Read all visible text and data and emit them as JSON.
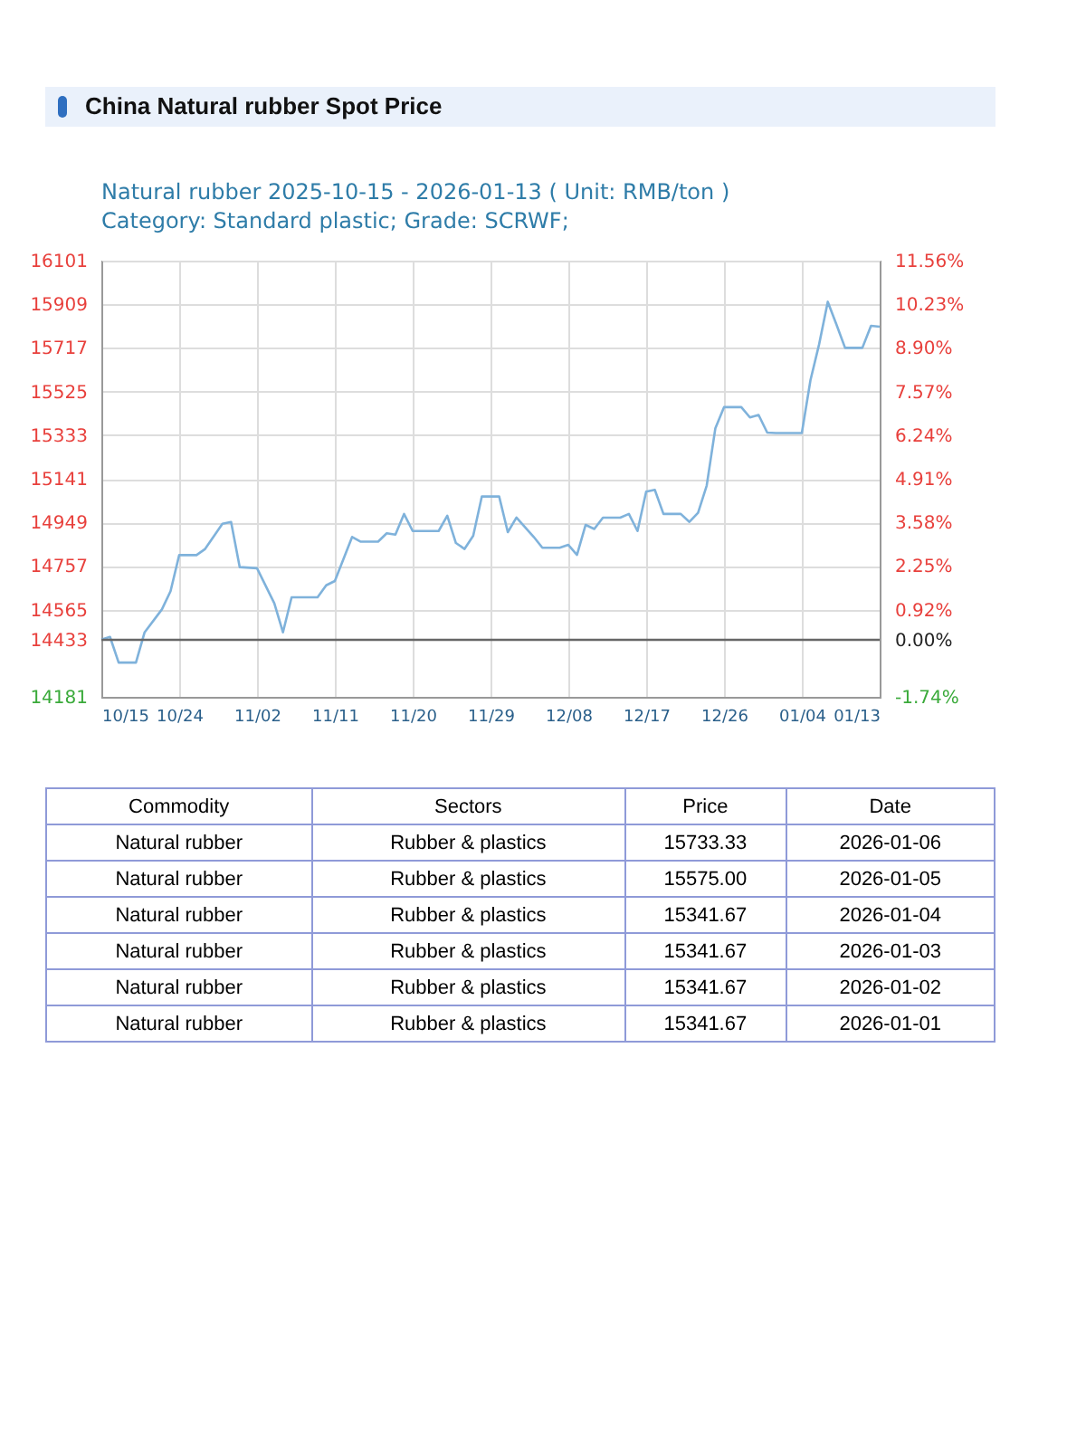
{
  "chart_data": {
    "type": "line",
    "title": "Natural rubber 2025-10-15 - 2026-01-13    ( Unit: RMB/ton )",
    "subtitle": "Category: Standard plastic; Grade: SCRWF;",
    "x": [
      "2025-10-15",
      "2025-10-16",
      "2025-10-17",
      "2025-10-19",
      "2025-10-20",
      "2025-10-22",
      "2025-10-23",
      "2025-10-24",
      "2025-10-26",
      "2025-10-27",
      "2025-10-29",
      "2025-10-30",
      "2025-10-31",
      "2025-11-02",
      "2025-11-04",
      "2025-11-05",
      "2025-11-06",
      "2025-11-09",
      "2025-11-10",
      "2025-11-11",
      "2025-11-13",
      "2025-11-14",
      "2025-11-16",
      "2025-11-17",
      "2025-11-18",
      "2025-11-19",
      "2025-11-20",
      "2025-11-23",
      "2025-11-24",
      "2025-11-25",
      "2025-11-26",
      "2025-11-27",
      "2025-11-28",
      "2025-11-30",
      "2025-12-01",
      "2025-12-02",
      "2025-12-04",
      "2025-12-05",
      "2025-12-07",
      "2025-12-08",
      "2025-12-09",
      "2025-12-10",
      "2025-12-11",
      "2025-12-12",
      "2025-12-14",
      "2025-12-15",
      "2025-12-16",
      "2025-12-17",
      "2025-12-18",
      "2025-12-19",
      "2025-12-21",
      "2025-12-22",
      "2025-12-23",
      "2025-12-24",
      "2025-12-25",
      "2025-12-26",
      "2025-12-28",
      "2025-12-29",
      "2025-12-30",
      "2025-12-31",
      "2026-01-01",
      "2026-01-02",
      "2026-01-03",
      "2026-01-04",
      "2026-01-05",
      "2026-01-06",
      "2026-01-07",
      "2026-01-08",
      "2026-01-09",
      "2026-01-11",
      "2026-01-12",
      "2026-01-13"
    ],
    "series": [
      {
        "color": "#7fb2db",
        "values": [
          14433,
          14445,
          14332,
          14332,
          14465,
          14566,
          14646,
          14805,
          14805,
          14832,
          14943,
          14951,
          14752,
          14747,
          14593,
          14465,
          14619,
          14619,
          14672,
          14691,
          14885,
          14864,
          14864,
          14901,
          14895,
          14986,
          14911,
          14911,
          14978,
          14858,
          14832,
          14890,
          15063,
          15063,
          14906,
          14970,
          14885,
          14837,
          14837,
          14850,
          14806,
          14938,
          14920,
          14970,
          14970,
          14986,
          14911,
          15084,
          15092,
          14986,
          14986,
          14951,
          14991,
          15111,
          15363,
          15456,
          15456,
          15411,
          15422,
          15344,
          15342,
          15342,
          15342,
          15342,
          15575,
          15733,
          15920,
          15820,
          15717,
          15717,
          15814,
          15810
        ]
      }
    ],
    "xlim": [
      "2025-10-15",
      "2026-01-13"
    ],
    "xticks": [
      {
        "value": "2025-10-15",
        "label": "10/15"
      },
      {
        "value": "2025-10-24",
        "label": "10/24"
      },
      {
        "value": "2025-11-02",
        "label": "11/02"
      },
      {
        "value": "2025-11-11",
        "label": "11/11"
      },
      {
        "value": "2025-11-20",
        "label": "11/20"
      },
      {
        "value": "2025-11-29",
        "label": "11/29"
      },
      {
        "value": "2025-12-08",
        "label": "12/08"
      },
      {
        "value": "2025-12-17",
        "label": "12/17"
      },
      {
        "value": "2025-12-26",
        "label": "12/26"
      },
      {
        "value": "2026-01-04",
        "label": "01/04"
      },
      {
        "value": "2026-01-13",
        "label": "01/13"
      }
    ],
    "ylim": [
      14181,
      16101
    ],
    "yticks": [
      14181,
      14433,
      14565,
      14757,
      14949,
      15141,
      15333,
      15525,
      15717,
      15909,
      16101
    ],
    "y2lim": [
      -1.74,
      11.56
    ],
    "y2ticks": [
      {
        "value": -1.74,
        "label": "-1.74%"
      },
      {
        "value": 0,
        "label": "0.00%"
      },
      {
        "value": 0.92,
        "label": "0.92%"
      },
      {
        "value": 2.25,
        "label": "2.25%"
      },
      {
        "value": 3.58,
        "label": "3.58%"
      },
      {
        "value": 4.91,
        "label": "4.91%"
      },
      {
        "value": 6.24,
        "label": "6.24%"
      },
      {
        "value": 7.57,
        "label": "7.57%"
      },
      {
        "value": 8.9,
        "label": "8.90%"
      },
      {
        "value": 10.23,
        "label": "10.23%"
      },
      {
        "value": 11.56,
        "label": "11.56%"
      }
    ],
    "ref_lines": [
      {
        "axis": "y2",
        "value": 0,
        "color": "#666666"
      }
    ],
    "grid": true,
    "annotations": [
      "China Natural rubber Spot Price",
      "Commodity",
      "Sectors",
      "Price",
      "Date",
      "Natural rubber",
      "Rubber & plastics",
      "15733.33",
      "2026-01-06",
      "Natural rubber",
      "Rubber & plastics",
      "15575.00",
      "2026-01-05",
      "Natural rubber",
      "Rubber & plastics",
      "15341.67",
      "2026-01-04",
      "Natural rubber",
      "Rubber & plastics",
      "15341.67",
      "2026-01-03",
      "Natural rubber",
      "Rubber & plastics",
      "15341.67",
      "2026-01-02",
      "Natural rubber",
      "Rubber & plastics",
      "15341.67",
      "2026-01-01"
    ]
  }
}
